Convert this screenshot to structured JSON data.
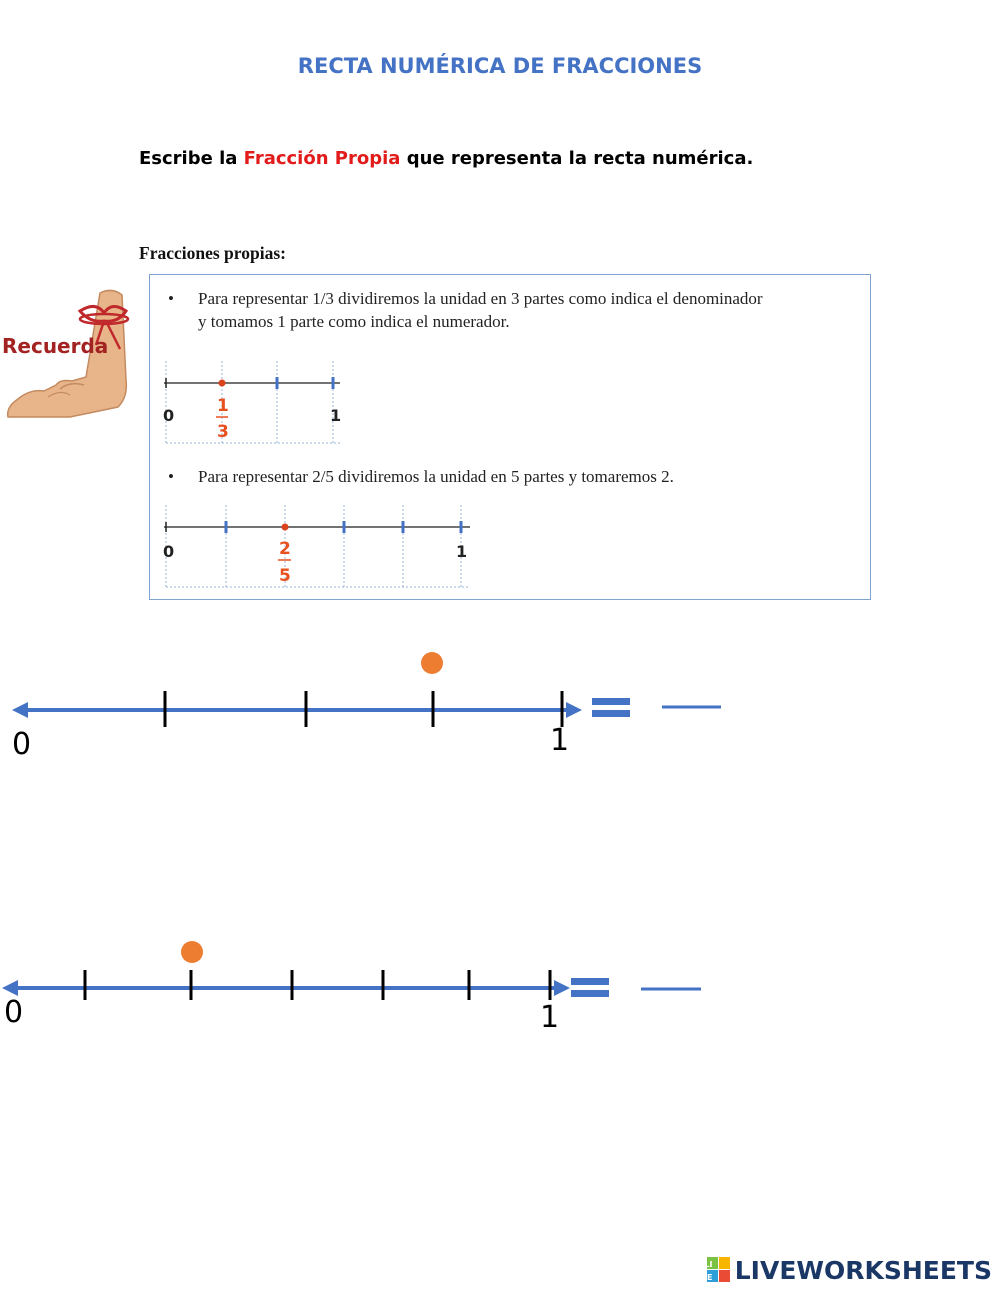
{
  "title": "RECTA NUMÉRICA DE FRACCIONES",
  "instruction": {
    "part1": "Escribe la ",
    "highlight": "Fracción Propia",
    "part2": " que representa la recta numérica."
  },
  "subheading": "Fracciones propias:",
  "reminder": {
    "label": "Recuerda",
    "bullets": [
      {
        "line1": "Para representar 1/3 dividiremos la unidad en 3 partes como indica el denominador",
        "line2": "y tomamos 1 parte como indica el numerador."
      },
      {
        "line1": "Para representar 2/5 dividiremos la unidad en 5 partes y tomaremos 2."
      }
    ],
    "example1": {
      "start": "0",
      "end": "1",
      "numerator": "1",
      "denominator": "3"
    },
    "example2": {
      "start": "0",
      "end": "1",
      "numerator": "2",
      "denominator": "5"
    }
  },
  "exercises": [
    {
      "start_label": "0",
      "end_label": "1",
      "divisions": 4,
      "marked_division": 3
    },
    {
      "start_label": "0",
      "end_label": "1",
      "divisions": 6,
      "marked_division": 2
    }
  ],
  "colors": {
    "title": "#4472c4",
    "highlight": "#e21b1b",
    "line": "#4472c4",
    "point": "#ed7d31"
  },
  "brand": {
    "name": "LIVEWORKSHEETS",
    "badge_top": "LI",
    "badge_bottom": "VE"
  }
}
